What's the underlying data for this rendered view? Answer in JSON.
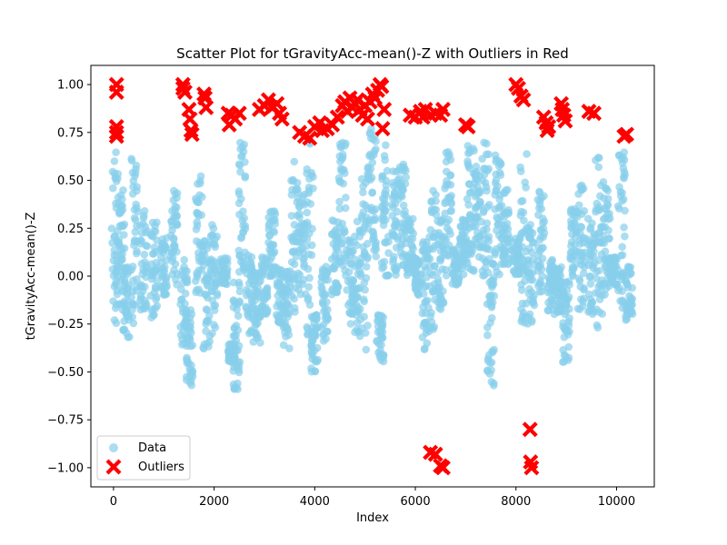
{
  "chart_data": {
    "type": "scatter",
    "title": "Scatter Plot for tGravityAcc-mean()-Z with Outliers in Red",
    "xlabel": "Index",
    "ylabel": "tGravityAcc-mean()-Z",
    "xlim": [
      -450,
      10750
    ],
    "ylim": [
      -1.1,
      1.1
    ],
    "xticks": [
      0,
      2000,
      4000,
      6000,
      8000,
      10000
    ],
    "yticks": [
      -1.0,
      -0.75,
      -0.5,
      -0.25,
      0.0,
      0.25,
      0.5,
      0.75,
      1.0
    ],
    "xtick_labels": [
      "0",
      "2000",
      "4000",
      "6000",
      "8000",
      "10000"
    ],
    "ytick_labels": [
      "−1.00",
      "−0.75",
      "−0.50",
      "−0.25",
      "0.00",
      "0.25",
      "0.50",
      "0.75",
      "1.00"
    ],
    "grid": false,
    "legend_position": "lower-left",
    "series": [
      {
        "name": "Data",
        "color": "#87ceeb",
        "marker": "circle",
        "clusters": [
          [
            30,
            -0.25,
            0.65
          ],
          [
            150,
            -0.15,
            0.45
          ],
          [
            250,
            -0.33,
            0.05
          ],
          [
            420,
            -0.25,
            0.62
          ],
          [
            600,
            -0.2,
            0.35
          ],
          [
            800,
            -0.22,
            0.3
          ],
          [
            1000,
            -0.1,
            0.2
          ],
          [
            1200,
            -0.05,
            0.45
          ],
          [
            1400,
            -0.37,
            0.1
          ],
          [
            1520,
            -0.57,
            -0.15
          ],
          [
            1700,
            -0.1,
            0.55
          ],
          [
            1850,
            -0.4,
            0.2
          ],
          [
            2000,
            -0.3,
            0.3
          ],
          [
            2200,
            -0.05,
            0.1
          ],
          [
            2350,
            -0.45,
            -0.35
          ],
          [
            2450,
            -0.6,
            0.0
          ],
          [
            2550,
            0.0,
            0.7
          ],
          [
            2700,
            -0.3,
            0.15
          ],
          [
            2850,
            -0.35,
            0.05
          ],
          [
            3000,
            -0.2,
            0.1
          ],
          [
            3150,
            0.0,
            0.35
          ],
          [
            3300,
            -0.25,
            0.05
          ],
          [
            3450,
            -0.4,
            0.05
          ],
          [
            3600,
            -0.2,
            0.6
          ],
          [
            3750,
            -0.15,
            0.45
          ],
          [
            3900,
            -0.4,
            0.7
          ],
          [
            4000,
            -0.5,
            -0.2
          ],
          [
            4200,
            -0.35,
            0.05
          ],
          [
            4400,
            -0.1,
            0.3
          ],
          [
            4550,
            0.0,
            0.7
          ],
          [
            4700,
            -0.25,
            0.2
          ],
          [
            4850,
            -0.35,
            0.3
          ],
          [
            5000,
            -0.4,
            0.6
          ],
          [
            5150,
            0.1,
            0.8
          ],
          [
            5300,
            -0.45,
            -0.2
          ],
          [
            5400,
            0.0,
            0.7
          ],
          [
            5600,
            0.0,
            0.55
          ],
          [
            5750,
            0.05,
            0.6
          ],
          [
            5900,
            0.0,
            0.3
          ],
          [
            6050,
            -0.1,
            0.1
          ],
          [
            6200,
            -0.4,
            0.2
          ],
          [
            6350,
            -0.3,
            0.45
          ],
          [
            6500,
            -0.2,
            0.3
          ],
          [
            6650,
            0.0,
            0.65
          ],
          [
            6800,
            -0.05,
            0.15
          ],
          [
            6950,
            0.0,
            0.3
          ],
          [
            7100,
            0.0,
            0.7
          ],
          [
            7250,
            0.1,
            0.6
          ],
          [
            7400,
            0.0,
            0.7
          ],
          [
            7500,
            -0.6,
            0.1
          ],
          [
            7650,
            0.0,
            0.65
          ],
          [
            7800,
            0.05,
            0.45
          ],
          [
            8000,
            0.0,
            0.2
          ],
          [
            8150,
            -0.25,
            0.65
          ],
          [
            8300,
            -0.25,
            0.3
          ],
          [
            8500,
            -0.1,
            0.45
          ],
          [
            8700,
            -0.2,
            0.1
          ],
          [
            8850,
            -0.2,
            0.05
          ],
          [
            9000,
            -0.45,
            0.0
          ],
          [
            9150,
            0.0,
            0.35
          ],
          [
            9300,
            -0.2,
            0.5
          ],
          [
            9500,
            -0.2,
            0.3
          ],
          [
            9650,
            -0.3,
            0.62
          ],
          [
            9800,
            -0.1,
            0.5
          ],
          [
            9950,
            -0.05,
            0.1
          ],
          [
            10100,
            -0.2,
            0.7
          ],
          [
            10250,
            -0.23,
            0.05
          ]
        ]
      },
      {
        "name": "Outliers",
        "color": "#ff0000",
        "marker": "x",
        "points": [
          [
            60,
            1.0
          ],
          [
            60,
            0.96
          ],
          [
            60,
            0.78
          ],
          [
            60,
            0.75
          ],
          [
            60,
            0.73
          ],
          [
            1380,
            1.0
          ],
          [
            1380,
            0.98
          ],
          [
            1420,
            0.96
          ],
          [
            1500,
            0.87
          ],
          [
            1520,
            0.82
          ],
          [
            1540,
            0.76
          ],
          [
            1560,
            0.74
          ],
          [
            1800,
            0.95
          ],
          [
            1820,
            0.93
          ],
          [
            1840,
            0.88
          ],
          [
            2280,
            0.85
          ],
          [
            2300,
            0.79
          ],
          [
            2350,
            0.84
          ],
          [
            2420,
            0.82
          ],
          [
            2500,
            0.85
          ],
          [
            2900,
            0.87
          ],
          [
            3000,
            0.89
          ],
          [
            3080,
            0.92
          ],
          [
            3150,
            0.88
          ],
          [
            3250,
            0.9
          ],
          [
            3300,
            0.85
          ],
          [
            3350,
            0.82
          ],
          [
            3700,
            0.75
          ],
          [
            3800,
            0.73
          ],
          [
            3900,
            0.72
          ],
          [
            4000,
            0.78
          ],
          [
            4100,
            0.8
          ],
          [
            4150,
            0.76
          ],
          [
            4250,
            0.77
          ],
          [
            4350,
            0.79
          ],
          [
            4450,
            0.83
          ],
          [
            4550,
            0.89
          ],
          [
            4600,
            0.91
          ],
          [
            4650,
            0.86
          ],
          [
            4700,
            0.93
          ],
          [
            4750,
            0.88
          ],
          [
            4800,
            0.9
          ],
          [
            4850,
            0.92
          ],
          [
            4900,
            0.87
          ],
          [
            4950,
            0.84
          ],
          [
            5000,
            0.89
          ],
          [
            5050,
            0.82
          ],
          [
            5100,
            0.91
          ],
          [
            5150,
            0.95
          ],
          [
            5200,
            0.93
          ],
          [
            5250,
            0.97
          ],
          [
            5300,
            1.0
          ],
          [
            5330,
            0.99
          ],
          [
            5350,
            0.77
          ],
          [
            5380,
            0.87
          ],
          [
            5900,
            0.84
          ],
          [
            6000,
            0.83
          ],
          [
            6100,
            0.86
          ],
          [
            6150,
            0.83
          ],
          [
            6200,
            0.87
          ],
          [
            6300,
            0.84
          ],
          [
            6400,
            0.85
          ],
          [
            6500,
            0.84
          ],
          [
            6550,
            0.87
          ],
          [
            7000,
            0.79
          ],
          [
            7050,
            0.78
          ],
          [
            8000,
            1.0
          ],
          [
            8050,
            0.98
          ],
          [
            8100,
            0.94
          ],
          [
            8150,
            0.92
          ],
          [
            8550,
            0.83
          ],
          [
            8600,
            0.8
          ],
          [
            8620,
            0.76
          ],
          [
            8650,
            0.78
          ],
          [
            8900,
            0.9
          ],
          [
            8920,
            0.87
          ],
          [
            8950,
            0.84
          ],
          [
            8980,
            0.81
          ],
          [
            9450,
            0.86
          ],
          [
            9550,
            0.85
          ],
          [
            10150,
            0.73
          ],
          [
            10200,
            0.74
          ],
          [
            6300,
            -0.92
          ],
          [
            6400,
            -0.93
          ],
          [
            6500,
            -0.99
          ],
          [
            6550,
            -1.0
          ],
          [
            8280,
            -0.8
          ],
          [
            8290,
            -0.97
          ],
          [
            8310,
            -1.0
          ]
        ]
      }
    ]
  }
}
